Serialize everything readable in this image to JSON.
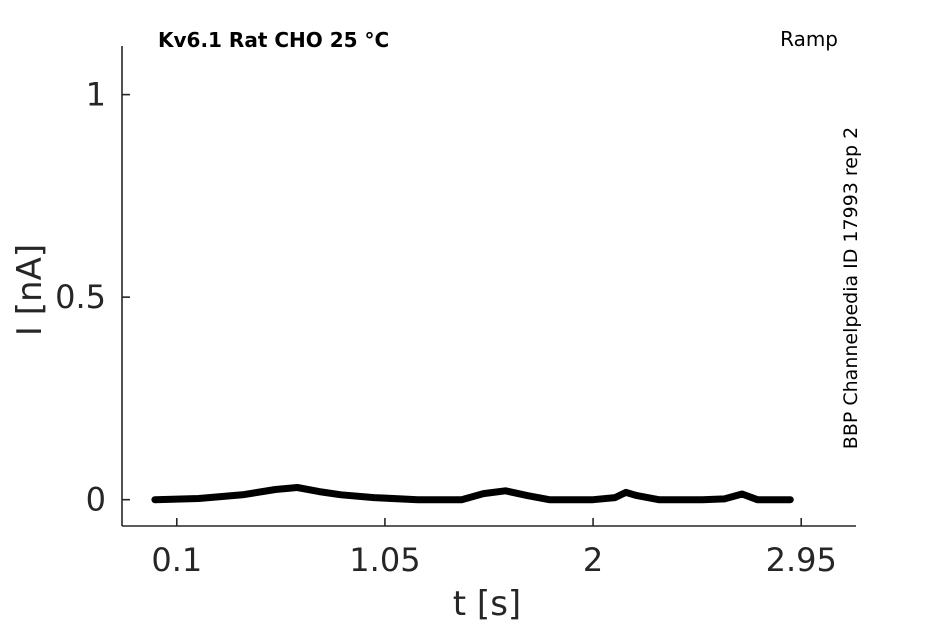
{
  "chart_data": {
    "type": "line",
    "title": "Kv6.1  Rat  CHO  25 °C",
    "protocol": "Ramp",
    "source_note": "BBP Channelpedia ID 17993 rep 2",
    "xlabel": "t [s]",
    "ylabel": "I [nA]",
    "xlim": [
      -0.15,
      3.2
    ],
    "ylim": [
      -0.065,
      1.12
    ],
    "xticks": [
      0.1,
      1.05,
      2,
      2.95
    ],
    "xtick_labels": [
      "0.1",
      "1.05",
      "2",
      "2.95"
    ],
    "yticks": [
      0,
      0.5,
      1
    ],
    "ytick_labels": [
      "0",
      "0.5",
      "1"
    ],
    "grid": false,
    "series": [
      {
        "color": "#000000",
        "x": [
          0.0,
          0.2,
          0.4,
          0.55,
          0.65,
          0.75,
          0.85,
          1.0,
          1.2,
          1.4,
          1.5,
          1.6,
          1.7,
          1.8,
          2.0,
          2.1,
          2.15,
          2.2,
          2.3,
          2.5,
          2.6,
          2.68,
          2.75,
          2.9
        ],
        "y": [
          0.0,
          0.003,
          0.012,
          0.025,
          0.03,
          0.02,
          0.012,
          0.005,
          0.0,
          0.0,
          0.015,
          0.022,
          0.01,
          0.0,
          0.0,
          0.005,
          0.018,
          0.01,
          0.0,
          0.0,
          0.002,
          0.014,
          0.0,
          0.0
        ]
      }
    ]
  }
}
